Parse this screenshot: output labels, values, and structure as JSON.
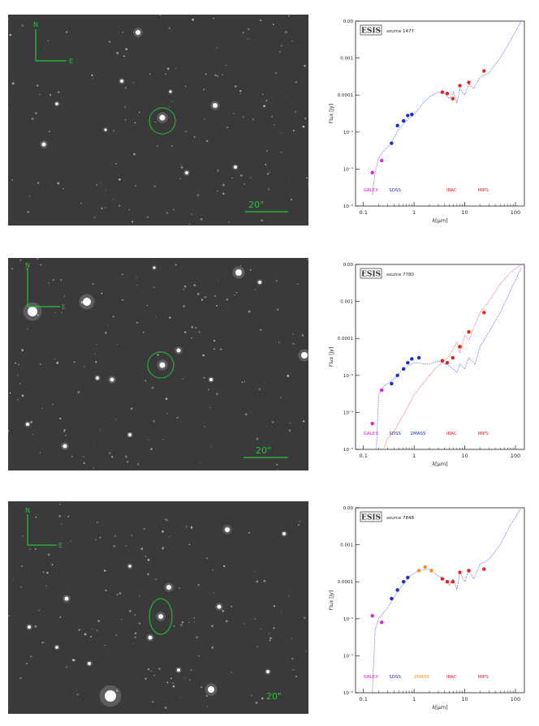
{
  "colors": {
    "compass": "#22c33a",
    "marker": "#22c33a",
    "galex": "#e020e0",
    "sdss": "#1b2bd8",
    "twomass": "#ff8a1a",
    "iras": "#e82020",
    "model_blue": "#6a7de8",
    "model_red": "#f07070"
  },
  "rows": [
    {
      "image": {
        "north_label": "N",
        "east_label": "E",
        "scale_label": "20\""
      },
      "chart_data": {
        "type": "scatter",
        "logo": "ESIS",
        "source": "source 1477",
        "xlabel": "λ[µm]",
        "ylabel": "Flux [Jy]",
        "xscale": "log",
        "yscale": "log",
        "xlim": [
          0.07,
          150
        ],
        "ylim": [
          1e-05,
          1.0
        ],
        "xticks": [
          "0.1",
          "1",
          "10",
          "100"
        ],
        "yticks": [
          "0.00",
          "0.001",
          "0.0001",
          "10⁻³",
          "10⁻⁴",
          "10⁻⁵"
        ],
        "bands": [
          {
            "label": "GALEX",
            "color": "#e020e0",
            "x": 0.14
          },
          {
            "label": "SDSS",
            "color": "#1b2bd8",
            "x": 0.42
          },
          {
            "label": "IRAC",
            "color": "#e82020",
            "x": 5.5
          },
          {
            "label": "MIPS",
            "color": "#e82020",
            "x": 23
          }
        ],
        "series": [
          {
            "color": "#e020e0",
            "points": [
              [
                0.15,
                8e-05
              ],
              [
                0.23,
                0.00017
              ]
            ]
          },
          {
            "color": "#1b2bd8",
            "points": [
              [
                0.36,
                0.0005
              ],
              [
                0.47,
                0.0015
              ],
              [
                0.62,
                0.002
              ],
              [
                0.75,
                0.0028
              ],
              [
                0.9,
                0.003
              ]
            ]
          },
          {
            "color": "#e82020",
            "points": [
              [
                3.6,
                0.012
              ],
              [
                4.5,
                0.011
              ],
              [
                5.8,
                0.008
              ],
              [
                8,
                0.018
              ],
              [
                12,
                0.022
              ],
              [
                24,
                0.045
              ]
            ]
          }
        ],
        "models": [
          {
            "color": "#6a7de8",
            "points": [
              [
                0.15,
                2e-05
              ],
              [
                0.17,
                8e-05
              ],
              [
                0.2,
                0.0002
              ],
              [
                0.25,
                0.0003
              ],
              [
                0.35,
                0.0005
              ],
              [
                0.5,
                0.0012
              ],
              [
                0.7,
                0.002
              ],
              [
                1,
                0.003
              ],
              [
                1.5,
                0.006
              ],
              [
                2,
                0.009
              ],
              [
                3,
                0.012
              ],
              [
                4,
                0.011
              ],
              [
                5,
                0.008
              ],
              [
                6,
                0.012
              ],
              [
                7,
                0.006
              ],
              [
                8,
                0.015
              ],
              [
                10,
                0.01
              ],
              [
                12,
                0.02
              ],
              [
                15,
                0.015
              ],
              [
                20,
                0.03
              ],
              [
                30,
                0.04
              ],
              [
                50,
                0.1
              ],
              [
                80,
                0.3
              ],
              [
                130,
                1.0
              ]
            ]
          }
        ]
      }
    },
    {
      "image": {
        "north_label": "N",
        "east_label": "E",
        "scale_label": "20\""
      },
      "chart_data": {
        "type": "scatter",
        "logo": "ESIS",
        "source": "source 7780",
        "xlabel": "λ[µm]",
        "ylabel": "Flux [Jy]",
        "xscale": "log",
        "yscale": "log",
        "xlim": [
          0.07,
          150
        ],
        "ylim": [
          1e-05,
          1.0
        ],
        "xticks": [
          "0.1",
          "1",
          "10",
          "100"
        ],
        "yticks": [
          "0.00",
          "0.001",
          "0.0001",
          "10⁻³",
          "10⁻⁴",
          "10⁻⁵"
        ],
        "bands": [
          {
            "label": "GALEX",
            "color": "#e020e0",
            "x": 0.14
          },
          {
            "label": "SDSS",
            "color": "#1b2bd8",
            "x": 0.42
          },
          {
            "label": "2MASS",
            "color": "#1b2bd8",
            "x": 1.2
          },
          {
            "label": "IRAC",
            "color": "#e82020",
            "x": 5.5
          },
          {
            "label": "MIPS",
            "color": "#e82020",
            "x": 23
          }
        ],
        "series": [
          {
            "color": "#e020e0",
            "points": [
              [
                0.15,
                5e-05
              ],
              [
                0.23,
                0.0004
              ]
            ]
          },
          {
            "color": "#1b2bd8",
            "points": [
              [
                0.36,
                0.0006
              ],
              [
                0.47,
                0.001
              ],
              [
                0.62,
                0.0015
              ],
              [
                0.75,
                0.0022
              ],
              [
                0.9,
                0.0028
              ],
              [
                1.25,
                0.003
              ]
            ]
          },
          {
            "color": "#e82020",
            "points": [
              [
                3.6,
                0.0025
              ],
              [
                4.5,
                0.0022
              ],
              [
                5.8,
                0.003
              ],
              [
                8,
                0.006
              ],
              [
                12,
                0.015
              ],
              [
                24,
                0.05
              ]
            ]
          }
        ],
        "models": [
          {
            "color": "#6a7de8",
            "points": [
              [
                0.18,
                1e-05
              ],
              [
                0.2,
                0.0003
              ],
              [
                0.25,
                0.0005
              ],
              [
                0.4,
                0.0008
              ],
              [
                0.6,
                0.0015
              ],
              [
                1,
                0.0022
              ],
              [
                2,
                0.002
              ],
              [
                3,
                0.0025
              ],
              [
                5,
                0.0018
              ],
              [
                7,
                0.0012
              ],
              [
                8,
                0.002
              ],
              [
                10,
                0.0015
              ],
              [
                12,
                0.003
              ],
              [
                16,
                0.002
              ],
              [
                20,
                0.006
              ],
              [
                30,
                0.015
              ],
              [
                50,
                0.05
              ],
              [
                80,
                0.2
              ],
              [
                130,
                0.8
              ]
            ]
          },
          {
            "color": "#f07070",
            "points": [
              [
                0.25,
                1e-05
              ],
              [
                0.3,
                2e-05
              ],
              [
                0.4,
                3e-05
              ],
              [
                0.6,
                8e-05
              ],
              [
                1,
                0.0003
              ],
              [
                2,
                0.001
              ],
              [
                3,
                0.0018
              ],
              [
                4,
                0.0025
              ],
              [
                5,
                0.0035
              ],
              [
                7,
                0.008
              ],
              [
                8,
                0.004
              ],
              [
                10,
                0.012
              ],
              [
                12,
                0.009
              ],
              [
                15,
                0.02
              ],
              [
                20,
                0.05
              ],
              [
                30,
                0.1
              ],
              [
                50,
                0.3
              ],
              [
                80,
                0.6
              ],
              [
                130,
                1.0
              ]
            ]
          }
        ]
      }
    },
    {
      "image": {
        "north_label": "N",
        "east_label": "E",
        "scale_label": "20\""
      },
      "chart_data": {
        "type": "scatter",
        "logo": "ESIS",
        "source": "source 7848",
        "xlabel": "λ[µm]",
        "ylabel": "Flux [Jy]",
        "xscale": "log",
        "yscale": "log",
        "xlim": [
          0.07,
          150
        ],
        "ylim": [
          1e-05,
          1.0
        ],
        "xticks": [
          "0.1",
          "1",
          "10",
          "100"
        ],
        "yticks": [
          "0.00",
          "0.001",
          "0.0001",
          "10⁻³",
          "10⁻⁴",
          "10⁻⁵"
        ],
        "bands": [
          {
            "label": "GALEX",
            "color": "#e020e0",
            "x": 0.14
          },
          {
            "label": "SDSS",
            "color": "#1b2bd8",
            "x": 0.42
          },
          {
            "label": "2MASS",
            "color": "#ff8a1a",
            "x": 1.4
          },
          {
            "label": "IRAC",
            "color": "#e82020",
            "x": 5.5
          },
          {
            "label": "MIPS",
            "color": "#e82020",
            "x": 23
          }
        ],
        "series": [
          {
            "color": "#e020e0",
            "points": [
              [
                0.15,
                0.0012
              ],
              [
                0.23,
                0.0008
              ]
            ]
          },
          {
            "color": "#1b2bd8",
            "points": [
              [
                0.36,
                0.0035
              ],
              [
                0.47,
                0.006
              ],
              [
                0.62,
                0.01
              ],
              [
                0.75,
                0.013
              ]
            ]
          },
          {
            "color": "#ff8a1a",
            "points": [
              [
                1.25,
                0.02
              ],
              [
                1.65,
                0.025
              ],
              [
                2.2,
                0.02
              ]
            ]
          },
          {
            "color": "#e82020",
            "points": [
              [
                3.6,
                0.012
              ],
              [
                4.5,
                0.01
              ],
              [
                5.8,
                0.01
              ],
              [
                8,
                0.018
              ],
              [
                12,
                0.02
              ],
              [
                24,
                0.022
              ]
            ]
          }
        ],
        "models": [
          {
            "color": "#6a7de8",
            "points": [
              [
                0.15,
                1e-05
              ],
              [
                0.17,
                0.0005
              ],
              [
                0.2,
                0.001
              ],
              [
                0.3,
                0.002
              ],
              [
                0.5,
                0.006
              ],
              [
                0.8,
                0.014
              ],
              [
                1.2,
                0.02
              ],
              [
                2,
                0.022
              ],
              [
                3,
                0.014
              ],
              [
                4,
                0.012
              ],
              [
                5,
                0.008
              ],
              [
                6,
                0.012
              ],
              [
                7,
                0.006
              ],
              [
                8,
                0.018
              ],
              [
                10,
                0.01
              ],
              [
                12,
                0.02
              ],
              [
                15,
                0.012
              ],
              [
                20,
                0.03
              ],
              [
                30,
                0.04
              ],
              [
                50,
                0.1
              ],
              [
                80,
                0.35
              ],
              [
                130,
                1.0
              ]
            ]
          }
        ]
      }
    }
  ]
}
